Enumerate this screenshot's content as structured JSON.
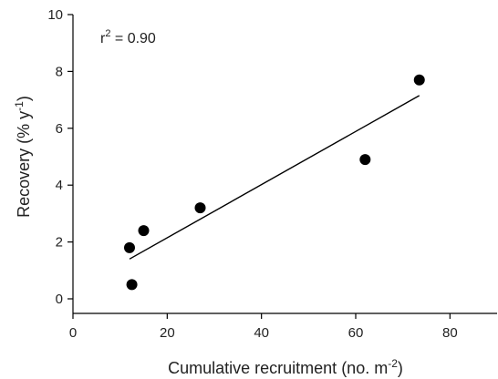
{
  "chart_data": {
    "type": "scatter",
    "xlabel": "Cumulative recruitment (no. m",
    "xlabel_sup": "-2",
    "xlabel_end": ")",
    "ylabel": "Recovery (% y",
    "ylabel_sup": "-1",
    "ylabel_end": ")",
    "xlim": [
      0,
      90
    ],
    "ylim": [
      0,
      10
    ],
    "xticks": [
      0,
      20,
      40,
      60,
      80
    ],
    "yticks": [
      0,
      2,
      4,
      6,
      8,
      10
    ],
    "points": [
      {
        "x": 12,
        "y": 1.8
      },
      {
        "x": 12.5,
        "y": 0.5
      },
      {
        "x": 15,
        "y": 2.4
      },
      {
        "x": 27,
        "y": 3.2
      },
      {
        "x": 62,
        "y": 4.9
      },
      {
        "x": 73.5,
        "y": 7.7
      }
    ],
    "fit_line": {
      "x0": 12,
      "y0": 1.4,
      "x1": 73.5,
      "y1": 7.15
    },
    "annotation": {
      "prefix": "r",
      "sup": "2",
      "suffix": " = 0.90"
    },
    "grid": false,
    "legend": "none",
    "colors": {
      "marker": "#000000",
      "line": "#000000",
      "axis": "#000000"
    }
  }
}
